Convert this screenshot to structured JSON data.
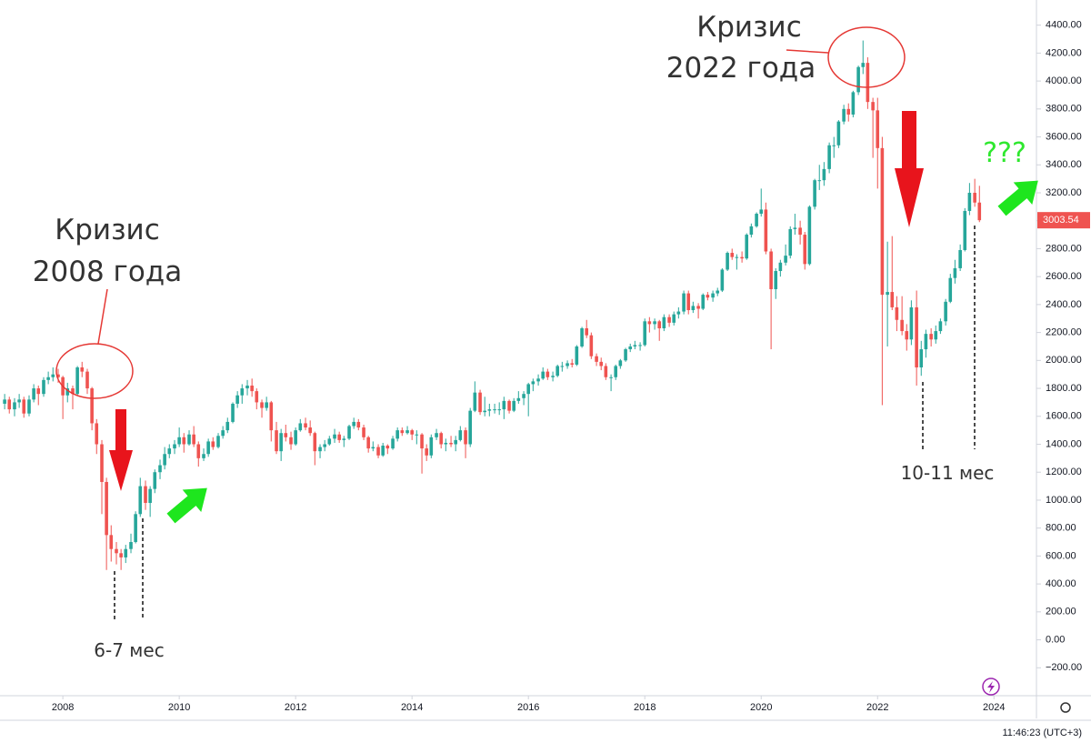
{
  "chart_data": {
    "type": "candlestick",
    "up_color": "#26a69a",
    "down_color": "#ef5350",
    "grid": false,
    "xlim": [
      2006.92,
      2024.73
    ],
    "xticks": [
      2008,
      2010,
      2012,
      2014,
      2016,
      2018,
      2020,
      2022,
      2024
    ],
    "ylim": [
      -400,
      4580
    ],
    "yticks": [
      {
        "value": -200,
        "label": "−200.00"
      },
      {
        "value": 0,
        "label": "0.00"
      },
      {
        "value": 200,
        "label": "200.00"
      },
      {
        "value": 400,
        "label": "400.00"
      },
      {
        "value": 600,
        "label": "600.00"
      },
      {
        "value": 800,
        "label": "800.00"
      },
      {
        "value": 1000,
        "label": "1000.00"
      },
      {
        "value": 1200,
        "label": "1200.00"
      },
      {
        "value": 1400,
        "label": "1400.00"
      },
      {
        "value": 1600,
        "label": "1600.00"
      },
      {
        "value": 1800,
        "label": "1800.00"
      },
      {
        "value": 2000,
        "label": "2000.00"
      },
      {
        "value": 2200,
        "label": "2200.00"
      },
      {
        "value": 2400,
        "label": "2400.00"
      },
      {
        "value": 2600,
        "label": "2600.00"
      },
      {
        "value": 2800,
        "label": "2800.00"
      },
      {
        "value": 3000,
        "label": "3000.00"
      },
      {
        "value": 3200,
        "label": "3200.00"
      },
      {
        "value": 3400,
        "label": "3400.00"
      },
      {
        "value": 3600,
        "label": "3600.00"
      },
      {
        "value": 3800,
        "label": "3800.00"
      },
      {
        "value": 4000,
        "label": "4000.00"
      },
      {
        "value": 4200,
        "label": "4200.00"
      },
      {
        "value": 4400,
        "label": "4400.00"
      }
    ],
    "annotations": [
      "Кризис",
      "2008 года",
      "6-7 мес",
      "Кризис",
      "2022 года",
      "10-11 мес",
      "???"
    ],
    "x": [
      2007,
      2007.08,
      2007.17,
      2007.25,
      2007.33,
      2007.42,
      2007.5,
      2007.58,
      2007.67,
      2007.75,
      2007.83,
      2007.92,
      2008,
      2008.08,
      2008.17,
      2008.25,
      2008.33,
      2008.42,
      2008.5,
      2008.58,
      2008.67,
      2008.75,
      2008.83,
      2008.92,
      2009,
      2009.08,
      2009.17,
      2009.25,
      2009.33,
      2009.42,
      2009.5,
      2009.58,
      2009.67,
      2009.75,
      2009.83,
      2009.92,
      2010,
      2010.08,
      2010.17,
      2010.25,
      2010.33,
      2010.42,
      2010.5,
      2010.58,
      2010.67,
      2010.75,
      2010.83,
      2010.92,
      2011,
      2011.08,
      2011.17,
      2011.25,
      2011.33,
      2011.42,
      2011.5,
      2011.58,
      2011.67,
      2011.75,
      2011.83,
      2011.92,
      2012,
      2012.08,
      2012.17,
      2012.25,
      2012.33,
      2012.42,
      2012.5,
      2012.58,
      2012.67,
      2012.75,
      2012.83,
      2012.92,
      2013,
      2013.08,
      2013.17,
      2013.25,
      2013.33,
      2013.42,
      2013.5,
      2013.58,
      2013.67,
      2013.75,
      2013.83,
      2013.92,
      2014,
      2014.08,
      2014.17,
      2014.25,
      2014.33,
      2014.42,
      2014.5,
      2014.58,
      2014.67,
      2014.75,
      2014.83,
      2014.92,
      2015,
      2015.08,
      2015.17,
      2015.25,
      2015.33,
      2015.42,
      2015.5,
      2015.58,
      2015.67,
      2015.75,
      2015.83,
      2015.92,
      2016,
      2016.08,
      2016.17,
      2016.25,
      2016.33,
      2016.42,
      2016.5,
      2016.58,
      2016.67,
      2016.75,
      2016.83,
      2016.92,
      2017,
      2017.08,
      2017.17,
      2017.25,
      2017.33,
      2017.42,
      2017.5,
      2017.58,
      2017.67,
      2017.75,
      2017.83,
      2017.92,
      2018,
      2018.08,
      2018.17,
      2018.25,
      2018.33,
      2018.42,
      2018.5,
      2018.58,
      2018.67,
      2018.75,
      2018.83,
      2018.92,
      2019,
      2019.08,
      2019.17,
      2019.25,
      2019.33,
      2019.42,
      2019.5,
      2019.58,
      2019.67,
      2019.75,
      2019.83,
      2019.92,
      2020,
      2020.08,
      2020.17,
      2020.25,
      2020.33,
      2020.42,
      2020.5,
      2020.58,
      2020.67,
      2020.75,
      2020.83,
      2020.92,
      2021,
      2021.08,
      2021.17,
      2021.25,
      2021.33,
      2021.42,
      2021.5,
      2021.58,
      2021.67,
      2021.75,
      2021.83,
      2021.92,
      2022,
      2022.08,
      2022.17,
      2022.25,
      2022.33,
      2022.42,
      2022.5,
      2022.58,
      2022.67,
      2022.75,
      2022.83,
      2022.92,
      2023,
      2023.08,
      2023.17,
      2023.25,
      2023.33,
      2023.42,
      2023.5,
      2023.58,
      2023.67,
      2023.75
    ],
    "ohlc": [
      [
        1690,
        1760,
        1650,
        1720
      ],
      [
        1720,
        1740,
        1620,
        1650
      ],
      [
        1650,
        1730,
        1600,
        1700
      ],
      [
        1700,
        1760,
        1660,
        1720
      ],
      [
        1720,
        1740,
        1590,
        1620
      ],
      [
        1620,
        1750,
        1600,
        1720
      ],
      [
        1720,
        1830,
        1700,
        1800
      ],
      [
        1800,
        1820,
        1680,
        1760
      ],
      [
        1760,
        1880,
        1740,
        1860
      ],
      [
        1860,
        1920,
        1830,
        1880
      ],
      [
        1880,
        1950,
        1850,
        1900
      ],
      [
        1900,
        1940,
        1840,
        1880
      ],
      [
        1880,
        1890,
        1580,
        1750
      ],
      [
        1750,
        1840,
        1700,
        1800
      ],
      [
        1800,
        1820,
        1650,
        1760
      ],
      [
        1760,
        1960,
        1750,
        1950
      ],
      [
        1950,
        1990,
        1880,
        1920
      ],
      [
        1920,
        1940,
        1760,
        1800
      ],
      [
        1800,
        1810,
        1500,
        1550
      ],
      [
        1550,
        1580,
        1330,
        1400
      ],
      [
        1400,
        1430,
        900,
        1130
      ],
      [
        1130,
        1160,
        500,
        750
      ],
      [
        750,
        820,
        560,
        650
      ],
      [
        650,
        700,
        540,
        620
      ],
      [
        620,
        650,
        500,
        590
      ],
      [
        590,
        680,
        550,
        650
      ],
      [
        650,
        760,
        620,
        700
      ],
      [
        700,
        920,
        690,
        900
      ],
      [
        900,
        1160,
        880,
        1100
      ],
      [
        1100,
        1140,
        930,
        980
      ],
      [
        980,
        1100,
        880,
        1080
      ],
      [
        1080,
        1220,
        1050,
        1200
      ],
      [
        1200,
        1290,
        1150,
        1250
      ],
      [
        1250,
        1380,
        1220,
        1330
      ],
      [
        1330,
        1400,
        1300,
        1370
      ],
      [
        1370,
        1430,
        1330,
        1400
      ],
      [
        1400,
        1520,
        1380,
        1450
      ],
      [
        1450,
        1480,
        1340,
        1400
      ],
      [
        1400,
        1500,
        1390,
        1470
      ],
      [
        1470,
        1530,
        1380,
        1400
      ],
      [
        1400,
        1420,
        1240,
        1300
      ],
      [
        1300,
        1370,
        1280,
        1330
      ],
      [
        1330,
        1440,
        1310,
        1420
      ],
      [
        1420,
        1450,
        1360,
        1380
      ],
      [
        1380,
        1480,
        1370,
        1460
      ],
      [
        1460,
        1530,
        1440,
        1500
      ],
      [
        1500,
        1590,
        1480,
        1560
      ],
      [
        1560,
        1700,
        1550,
        1690
      ],
      [
        1690,
        1780,
        1660,
        1750
      ],
      [
        1750,
        1830,
        1690,
        1800
      ],
      [
        1800,
        1860,
        1750,
        1820
      ],
      [
        1820,
        1870,
        1740,
        1780
      ],
      [
        1780,
        1800,
        1650,
        1700
      ],
      [
        1700,
        1720,
        1590,
        1660
      ],
      [
        1660,
        1740,
        1640,
        1700
      ],
      [
        1700,
        1710,
        1420,
        1500
      ],
      [
        1500,
        1560,
        1330,
        1350
      ],
      [
        1350,
        1510,
        1280,
        1480
      ],
      [
        1480,
        1540,
        1420,
        1450
      ],
      [
        1450,
        1490,
        1360,
        1400
      ],
      [
        1400,
        1520,
        1390,
        1500
      ],
      [
        1500,
        1580,
        1490,
        1550
      ],
      [
        1550,
        1590,
        1500,
        1520
      ],
      [
        1520,
        1570,
        1460,
        1480
      ],
      [
        1480,
        1490,
        1250,
        1350
      ],
      [
        1350,
        1400,
        1300,
        1380
      ],
      [
        1380,
        1430,
        1350,
        1400
      ],
      [
        1400,
        1460,
        1390,
        1440
      ],
      [
        1440,
        1510,
        1410,
        1470
      ],
      [
        1470,
        1490,
        1410,
        1430
      ],
      [
        1430,
        1460,
        1380,
        1440
      ],
      [
        1440,
        1540,
        1430,
        1530
      ],
      [
        1530,
        1590,
        1510,
        1560
      ],
      [
        1560,
        1580,
        1500,
        1520
      ],
      [
        1520,
        1540,
        1430,
        1450
      ],
      [
        1450,
        1460,
        1340,
        1370
      ],
      [
        1370,
        1420,
        1350,
        1380
      ],
      [
        1380,
        1400,
        1300,
        1320
      ],
      [
        1320,
        1410,
        1310,
        1390
      ],
      [
        1390,
        1400,
        1330,
        1370
      ],
      [
        1370,
        1460,
        1360,
        1440
      ],
      [
        1440,
        1520,
        1420,
        1500
      ],
      [
        1500,
        1520,
        1460,
        1480
      ],
      [
        1480,
        1530,
        1470,
        1500
      ],
      [
        1500,
        1510,
        1430,
        1470
      ],
      [
        1470,
        1500,
        1400,
        1470
      ],
      [
        1470,
        1480,
        1190,
        1370
      ],
      [
        1370,
        1400,
        1280,
        1320
      ],
      [
        1320,
        1470,
        1300,
        1450
      ],
      [
        1450,
        1510,
        1430,
        1480
      ],
      [
        1480,
        1490,
        1370,
        1400
      ],
      [
        1400,
        1440,
        1350,
        1410
      ],
      [
        1410,
        1460,
        1380,
        1400
      ],
      [
        1400,
        1460,
        1350,
        1430
      ],
      [
        1430,
        1530,
        1420,
        1500
      ],
      [
        1500,
        1520,
        1300,
        1400
      ],
      [
        1400,
        1660,
        1380,
        1640
      ],
      [
        1640,
        1850,
        1630,
        1770
      ],
      [
        1770,
        1790,
        1610,
        1630
      ],
      [
        1630,
        1740,
        1600,
        1640
      ],
      [
        1640,
        1690,
        1600,
        1650
      ],
      [
        1650,
        1690,
        1620,
        1650
      ],
      [
        1650,
        1700,
        1610,
        1650
      ],
      [
        1650,
        1740,
        1580,
        1710
      ],
      [
        1710,
        1720,
        1620,
        1640
      ],
      [
        1640,
        1730,
        1630,
        1710
      ],
      [
        1710,
        1780,
        1690,
        1730
      ],
      [
        1730,
        1780,
        1680,
        1760
      ],
      [
        1760,
        1840,
        1600,
        1830
      ],
      [
        1830,
        1870,
        1780,
        1850
      ],
      [
        1850,
        1900,
        1820,
        1870
      ],
      [
        1870,
        1950,
        1860,
        1920
      ],
      [
        1920,
        1940,
        1860,
        1880
      ],
      [
        1880,
        1920,
        1850,
        1890
      ],
      [
        1890,
        1970,
        1880,
        1960
      ],
      [
        1960,
        1990,
        1920,
        1960
      ],
      [
        1960,
        2000,
        1940,
        1980
      ],
      [
        1980,
        2010,
        1950,
        1970
      ],
      [
        1970,
        2110,
        1960,
        2100
      ],
      [
        2100,
        2240,
        2090,
        2230
      ],
      [
        2230,
        2290,
        2160,
        2180
      ],
      [
        2180,
        2200,
        2010,
        2030
      ],
      [
        2030,
        2050,
        1960,
        1990
      ],
      [
        1990,
        2020,
        1930,
        1960
      ],
      [
        1960,
        1980,
        1860,
        1880
      ],
      [
        1880,
        1900,
        1780,
        1880
      ],
      [
        1880,
        1970,
        1860,
        1960
      ],
      [
        1960,
        2010,
        1940,
        2000
      ],
      [
        2000,
        2090,
        1990,
        2080
      ],
      [
        2080,
        2120,
        2060,
        2100
      ],
      [
        2100,
        2140,
        2080,
        2110
      ],
      [
        2110,
        2130,
        2070,
        2110
      ],
      [
        2110,
        2300,
        2100,
        2280
      ],
      [
        2280,
        2310,
        2200,
        2260
      ],
      [
        2260,
        2300,
        2220,
        2280
      ],
      [
        2280,
        2290,
        2140,
        2230
      ],
      [
        2230,
        2330,
        2210,
        2310
      ],
      [
        2310,
        2330,
        2240,
        2270
      ],
      [
        2270,
        2350,
        2250,
        2330
      ],
      [
        2330,
        2380,
        2300,
        2350
      ],
      [
        2350,
        2500,
        2330,
        2480
      ],
      [
        2480,
        2500,
        2330,
        2360
      ],
      [
        2360,
        2420,
        2340,
        2390
      ],
      [
        2390,
        2410,
        2300,
        2370
      ],
      [
        2370,
        2480,
        2360,
        2470
      ],
      [
        2470,
        2490,
        2430,
        2450
      ],
      [
        2450,
        2500,
        2420,
        2480
      ],
      [
        2480,
        2520,
        2460,
        2500
      ],
      [
        2500,
        2660,
        2490,
        2650
      ],
      [
        2650,
        2780,
        2640,
        2770
      ],
      [
        2770,
        2800,
        2720,
        2740
      ],
      [
        2740,
        2760,
        2650,
        2740
      ],
      [
        2740,
        2780,
        2700,
        2730
      ],
      [
        2730,
        2910,
        2720,
        2900
      ],
      [
        2900,
        2980,
        2880,
        2960
      ],
      [
        2960,
        3060,
        2950,
        3050
      ],
      [
        3050,
        3230,
        3030,
        3080
      ],
      [
        3080,
        3130,
        2760,
        2780
      ],
      [
        2780,
        2800,
        2080,
        2510
      ],
      [
        2510,
        2660,
        2440,
        2640
      ],
      [
        2640,
        2720,
        2600,
        2700
      ],
      [
        2700,
        2830,
        2680,
        2750
      ],
      [
        2750,
        2960,
        2730,
        2940
      ],
      [
        2940,
        3050,
        2900,
        2950
      ],
      [
        2950,
        3000,
        2830,
        2900
      ],
      [
        2900,
        2920,
        2650,
        2690
      ],
      [
        2690,
        3110,
        2680,
        3100
      ],
      [
        3100,
        3300,
        3080,
        3290
      ],
      [
        3290,
        3400,
        3220,
        3290
      ],
      [
        3290,
        3420,
        3250,
        3370
      ],
      [
        3370,
        3560,
        3340,
        3540
      ],
      [
        3540,
        3600,
        3450,
        3540
      ],
      [
        3540,
        3720,
        3520,
        3710
      ],
      [
        3710,
        3830,
        3690,
        3800
      ],
      [
        3800,
        3840,
        3710,
        3760
      ],
      [
        3760,
        3930,
        3740,
        3920
      ],
      [
        3920,
        4110,
        3900,
        4100
      ],
      [
        4100,
        4290,
        4050,
        4130
      ],
      [
        4130,
        4170,
        3800,
        3850
      ],
      [
        3850,
        3880,
        3450,
        3790
      ],
      [
        3790,
        3880,
        3230,
        3520
      ],
      [
        3520,
        3600,
        1680,
        2470
      ],
      [
        2470,
        2850,
        2100,
        2490
      ],
      [
        2490,
        2890,
        2360,
        2380
      ],
      [
        2380,
        2460,
        2210,
        2290
      ],
      [
        2290,
        2460,
        2180,
        2210
      ],
      [
        2210,
        2260,
        2070,
        2150
      ],
      [
        2150,
        2430,
        2110,
        2380
      ],
      [
        2380,
        2500,
        1820,
        1950
      ],
      [
        1950,
        2140,
        1890,
        2080
      ],
      [
        2080,
        2220,
        2020,
        2190
      ],
      [
        2190,
        2230,
        2100,
        2150
      ],
      [
        2150,
        2250,
        2120,
        2210
      ],
      [
        2210,
        2300,
        2190,
        2280
      ],
      [
        2280,
        2440,
        2250,
        2420
      ],
      [
        2420,
        2620,
        2410,
        2590
      ],
      [
        2590,
        2720,
        2550,
        2660
      ],
      [
        2660,
        2830,
        2640,
        2790
      ],
      [
        2790,
        3090,
        2780,
        3070
      ],
      [
        3070,
        3270,
        3040,
        3200
      ],
      [
        3200,
        3300,
        3100,
        3130
      ],
      [
        3130,
        3250,
        2990,
        3003.54
      ]
    ]
  },
  "status_time": "11:46:23 (UTC+3)"
}
